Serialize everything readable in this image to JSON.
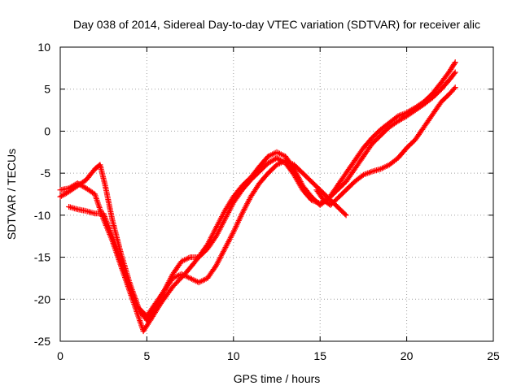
{
  "chart_data": {
    "type": "scatter",
    "title": "Day 038 of 2014, Sidereal Day-to-day VTEC variation (SDTVAR) for receiver alic",
    "xlabel": "GPS time / hours",
    "ylabel": "SDTVAR / TECUs",
    "xlim": [
      0,
      25
    ],
    "ylim": [
      -25,
      10
    ],
    "xticks": [
      0,
      5,
      10,
      15,
      20,
      25
    ],
    "yticks": [
      -25,
      -20,
      -15,
      -10,
      -5,
      0,
      5,
      10
    ],
    "xtick_labels": [
      "0",
      "5",
      "10",
      "15",
      "20",
      "25"
    ],
    "ytick_labels": [
      "-25",
      "-20",
      "-15",
      "-10",
      "-5",
      "0",
      "5",
      "10"
    ],
    "grid": true,
    "marker": "+",
    "color": "#ff0000",
    "series": [
      {
        "x": [
          0,
          0.5,
          1.0,
          1.5,
          2.0,
          2.5,
          3.0,
          3.5,
          4.0,
          4.5,
          4.8,
          5.2,
          5.8,
          6.5,
          7.2,
          7.8,
          8.5,
          9.0,
          9.5,
          10.0,
          10.5,
          11.0,
          11.5,
          12.0,
          12.5,
          13.0,
          13.5,
          14.0,
          14.5,
          15.0,
          15.5,
          16.0,
          16.5,
          17.0,
          17.5,
          18.0,
          18.5,
          19.0,
          19.5,
          20.0,
          20.5,
          21.0,
          21.5,
          22.0,
          22.5,
          22.8
        ],
        "y": [
          -7.0,
          -6.8,
          -6.2,
          -6.8,
          -7.5,
          -10.5,
          -13.0,
          -16.0,
          -19.0,
          -22.0,
          -23.8,
          -22.5,
          -20.5,
          -18.5,
          -17.0,
          -15.5,
          -13.5,
          -11.5,
          -9.5,
          -7.8,
          -6.5,
          -5.5,
          -4.2,
          -3.0,
          -2.5,
          -3.0,
          -4.5,
          -6.5,
          -7.8,
          -8.8,
          -8.0,
          -6.5,
          -5.0,
          -3.5,
          -2.0,
          -0.8,
          0.2,
          1.0,
          1.8,
          2.2,
          2.8,
          3.5,
          4.5,
          5.8,
          7.2,
          8.2
        ]
      },
      {
        "x": [
          0,
          0.5,
          1.0,
          1.5,
          2.0,
          2.3,
          2.6,
          3.0,
          3.5,
          4.0,
          4.6,
          5.0,
          5.5,
          6.0,
          6.5,
          7.0,
          7.5,
          8.0,
          8.5,
          9.0,
          9.5,
          10.0,
          10.5,
          11.0,
          11.5,
          12.0,
          12.5,
          13.0,
          13.5,
          14.0,
          14.5,
          15.0,
          15.5,
          16.0,
          16.5,
          17.0,
          17.5,
          18.0,
          18.5,
          19.0,
          19.5,
          20.0,
          20.5,
          21.0,
          21.5,
          22.0,
          22.5,
          22.8
        ],
        "y": [
          -7.8,
          -7.2,
          -6.5,
          -5.8,
          -4.5,
          -4.0,
          -6.5,
          -10.5,
          -14.5,
          -18.0,
          -21.5,
          -22.5,
          -21.0,
          -19.0,
          -17.0,
          -15.5,
          -15.0,
          -15.0,
          -14.0,
          -12.5,
          -10.5,
          -8.5,
          -7.0,
          -5.8,
          -4.8,
          -3.8,
          -3.2,
          -3.8,
          -5.2,
          -7.0,
          -8.2,
          -8.6,
          -8.0,
          -7.0,
          -6.0,
          -4.5,
          -3.0,
          -1.5,
          -0.5,
          0.5,
          1.2,
          1.8,
          2.5,
          3.2,
          4.0,
          5.0,
          6.2,
          7.0
        ]
      },
      {
        "x": [
          0.5,
          1.0,
          1.5,
          2.0,
          2.5,
          3.0,
          3.5,
          4.0,
          4.5,
          5.0,
          5.5,
          6.0,
          6.5,
          7.0,
          7.5,
          8.0,
          8.5,
          9.0,
          9.5,
          10.0,
          10.5,
          11.0,
          11.5,
          12.0,
          12.5,
          13.0,
          13.5,
          14.0,
          14.5,
          15.0,
          15.5,
          16.0,
          16.5
        ],
        "y": [
          -9.0,
          -9.3,
          -9.5,
          -9.8,
          -9.8,
          -12.5,
          -15.5,
          -18.5,
          -21.0,
          -22.0,
          -20.5,
          -19.0,
          -17.5,
          -17.0,
          -17.5,
          -18.0,
          -17.5,
          -16.0,
          -14.0,
          -12.0,
          -9.8,
          -7.8,
          -6.2,
          -5.0,
          -4.0,
          -3.5,
          -4.0,
          -5.0,
          -6.0,
          -7.0,
          -8.0,
          -9.0,
          -10.0
        ]
      },
      {
        "x": [
          14.8,
          15.2,
          15.6,
          16.0,
          16.5,
          17.0,
          17.5,
          18.0,
          18.5,
          19.0,
          19.5,
          20.0,
          20.5,
          21.0,
          21.5,
          22.0,
          22.5,
          22.8
        ],
        "y": [
          -7.0,
          -8.2,
          -8.8,
          -8.0,
          -7.0,
          -6.0,
          -5.2,
          -4.8,
          -4.5,
          -4.0,
          -3.2,
          -2.0,
          -1.0,
          0.5,
          2.0,
          3.5,
          4.5,
          5.2
        ]
      }
    ]
  }
}
